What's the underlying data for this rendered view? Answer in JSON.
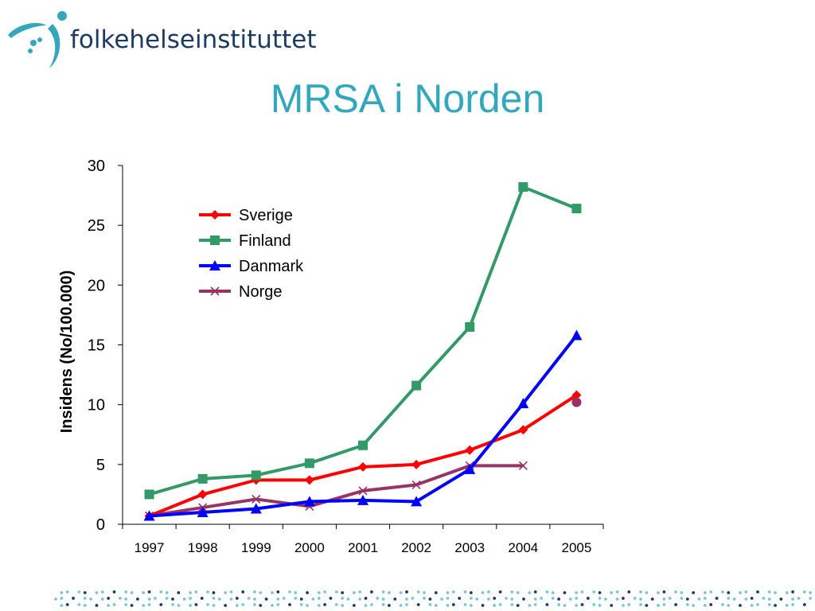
{
  "brand": {
    "logo_text": "folkehelseinstituttet",
    "colors": {
      "logo_mark": "#33a8bd",
      "logo_text": "#1b3a64",
      "title": "#33a8bd",
      "dots_light": "#7fc6d3",
      "dots_dark": "#1b3a64"
    }
  },
  "slide": {
    "title": "MRSA i Norden"
  },
  "chart_data": {
    "type": "line",
    "title": "",
    "xlabel": "",
    "ylabel": "Insidens (No/100.000)",
    "categories": [
      "1997",
      "1998",
      "1999",
      "2000",
      "2001",
      "2002",
      "2003",
      "2004",
      "2005"
    ],
    "ylim": [
      0,
      30
    ],
    "yticks": [
      0,
      5,
      10,
      15,
      20,
      25,
      30
    ],
    "grid": false,
    "legend_position": "top-left",
    "series": [
      {
        "name": "Sverige",
        "color": "#ff0000",
        "marker": "diamond",
        "values": [
          0.7,
          2.5,
          3.7,
          3.7,
          4.8,
          5.0,
          6.2,
          7.9,
          10.8
        ]
      },
      {
        "name": "Finland",
        "color": "#339966",
        "marker": "square",
        "values": [
          2.5,
          3.8,
          4.1,
          5.1,
          6.6,
          11.6,
          16.5,
          28.2,
          26.4
        ]
      },
      {
        "name": "Danmark",
        "color": "#0000ff",
        "marker": "triangle",
        "values": [
          0.7,
          1.0,
          1.3,
          1.9,
          2.0,
          1.9,
          4.6,
          10.1,
          15.8
        ]
      },
      {
        "name": "Norge",
        "color": "#993366",
        "marker": "x",
        "values": [
          0.7,
          1.4,
          2.1,
          1.5,
          2.8,
          3.3,
          4.9,
          4.9,
          null
        ]
      }
    ],
    "extra_points": [
      {
        "category": "2005",
        "value": 10.2,
        "color": "#993366",
        "marker": "circle"
      }
    ]
  }
}
